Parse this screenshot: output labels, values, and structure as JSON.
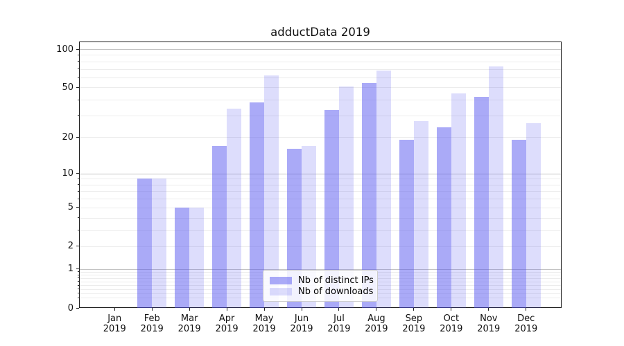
{
  "chart_data": {
    "type": "bar",
    "title": "adductData 2019",
    "categories": [
      "Jan",
      "Feb",
      "Mar",
      "Apr",
      "May",
      "Jun",
      "Jul",
      "Aug",
      "Sep",
      "Oct",
      "Nov",
      "Dec"
    ],
    "category_year": "2019",
    "series": [
      {
        "name": "Nb of distinct IPs",
        "color": "rgba(85,85,240,0.5)",
        "color_hex_on_white": "#aaaaf7",
        "values": [
          0,
          9,
          5,
          17,
          38,
          16,
          33,
          54,
          19,
          24,
          42,
          19
        ]
      },
      {
        "name": "Nb of downloads",
        "color": "rgba(85,85,240,0.2)",
        "color_hex_on_white": "#dddDfc",
        "values": [
          0,
          9,
          5,
          34,
          62,
          17,
          51,
          68,
          27,
          45,
          73,
          26
        ]
      }
    ],
    "xlabel": "",
    "ylabel": "",
    "yticks": [
      0,
      1,
      2,
      5,
      10,
      20,
      50,
      100
    ],
    "scale": "log10(1+v)",
    "ylim": [
      0,
      115
    ],
    "grid": "both",
    "major_grid_values": [
      1,
      10,
      100
    ],
    "legend_position": "lower center",
    "grid_major_color": "#c3c3c3",
    "grid_minor_color": "#ececec",
    "text_color": "#111111"
  }
}
